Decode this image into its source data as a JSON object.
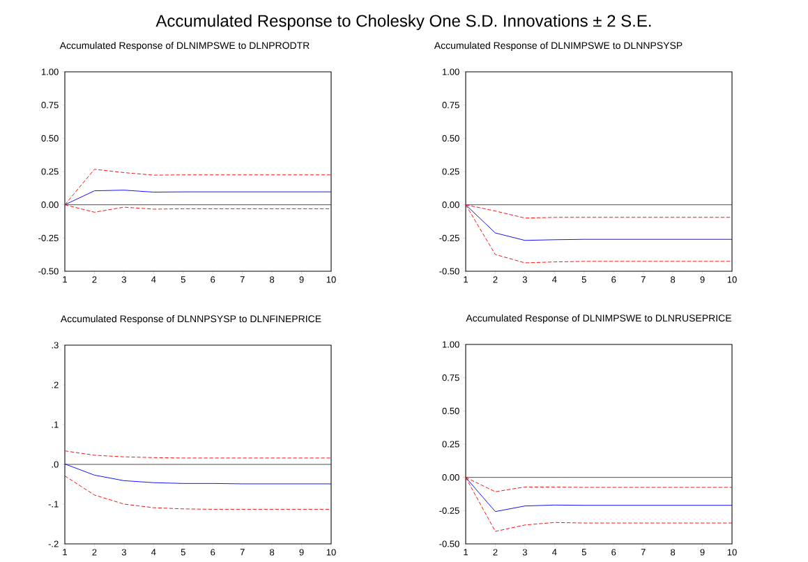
{
  "chart_data": [
    {
      "type": "other",
      "title": "Accumulated Response to Cholesky One S.D. Innovations ± 2 S.E."
    },
    {
      "type": "line",
      "title": "Accumulated Response of DLNIMPSWE to DLNPRODTR",
      "x": [
        1,
        2,
        3,
        4,
        5,
        6,
        7,
        8,
        9,
        10
      ],
      "xlim": [
        1,
        10
      ],
      "xticks": [
        1,
        2,
        3,
        4,
        5,
        6,
        7,
        8,
        9,
        10
      ],
      "ylim": [
        -0.5,
        1
      ],
      "yticks": [
        {
          "value": -0.5,
          "label": "-0.50"
        },
        {
          "value": -0.25,
          "label": "-0.25"
        },
        {
          "value": 0,
          "label": "0.00"
        },
        {
          "value": 0.25,
          "label": "0.25"
        },
        {
          "value": 0.5,
          "label": "0.50"
        },
        {
          "value": 0.75,
          "label": "0.75"
        },
        {
          "value": 1,
          "label": "1.00"
        }
      ],
      "ref_lines": [
        {
          "axis": "y",
          "value": 0,
          "color": "#404040"
        }
      ],
      "series": [
        {
          "color": "#0000ff",
          "line_style": "solid",
          "values": [
            0,
            0.105,
            0.11,
            0.095,
            0.097,
            0.097,
            0.097,
            0.097,
            0.097,
            0.097
          ]
        },
        {
          "color": "#ff0000",
          "line_style": "dashed",
          "values": [
            0,
            0.267,
            0.242,
            0.223,
            0.225,
            0.225,
            0.225,
            0.225,
            0.225,
            0.225
          ]
        },
        {
          "color": "#ff0000",
          "line_style": "dashed",
          "values": [
            0,
            -0.056,
            -0.018,
            -0.033,
            -0.03,
            -0.03,
            -0.03,
            -0.03,
            -0.03,
            -0.03
          ]
        }
      ]
    },
    {
      "type": "line",
      "title": "Accumulated Response of DLNIMPSWE to DLNNPSYSP",
      "x": [
        1,
        2,
        3,
        4,
        5,
        6,
        7,
        8,
        9,
        10
      ],
      "xlim": [
        1,
        10
      ],
      "xticks": [
        1,
        2,
        3,
        4,
        5,
        6,
        7,
        8,
        9,
        10
      ],
      "ylim": [
        -0.5,
        1
      ],
      "yticks": [
        {
          "value": -0.5,
          "label": "-0.50"
        },
        {
          "value": -0.25,
          "label": "-0.25"
        },
        {
          "value": 0,
          "label": "0.00"
        },
        {
          "value": 0.25,
          "label": "0.25"
        },
        {
          "value": 0.5,
          "label": "0.50"
        },
        {
          "value": 0.75,
          "label": "0.75"
        },
        {
          "value": 1,
          "label": "1.00"
        }
      ],
      "ref_lines": [
        {
          "axis": "y",
          "value": 0,
          "color": "#404040"
        }
      ],
      "series": [
        {
          "color": "#0000ff",
          "line_style": "solid",
          "values": [
            0,
            -0.212,
            -0.268,
            -0.263,
            -0.26,
            -0.26,
            -0.26,
            -0.26,
            -0.26,
            -0.26
          ]
        },
        {
          "color": "#ff0000",
          "line_style": "dashed",
          "values": [
            0,
            -0.047,
            -0.1,
            -0.095,
            -0.095,
            -0.095,
            -0.095,
            -0.095,
            -0.095,
            -0.095
          ]
        },
        {
          "color": "#ff0000",
          "line_style": "dashed",
          "values": [
            0,
            -0.374,
            -0.437,
            -0.43,
            -0.426,
            -0.426,
            -0.426,
            -0.426,
            -0.426,
            -0.426
          ]
        }
      ]
    },
    {
      "type": "line",
      "title": "Accumulated Response of DLNNPSYSP to DLNFINEPRICE",
      "x": [
        1,
        2,
        3,
        4,
        5,
        6,
        7,
        8,
        9,
        10
      ],
      "xlim": [
        1,
        10
      ],
      "xticks": [
        1,
        2,
        3,
        4,
        5,
        6,
        7,
        8,
        9,
        10
      ],
      "ylim": [
        -0.2,
        0.3
      ],
      "yticks": [
        {
          "value": -0.2,
          "label": "-.2"
        },
        {
          "value": -0.1,
          "label": "-.1"
        },
        {
          "value": 0,
          "label": ".0"
        },
        {
          "value": 0.1,
          "label": ".1"
        },
        {
          "value": 0.2,
          "label": ".2"
        },
        {
          "value": 0.3,
          "label": ".3"
        }
      ],
      "ref_lines": [
        {
          "axis": "y",
          "value": 0,
          "color": "#404040"
        }
      ],
      "series": [
        {
          "color": "#0000ff",
          "line_style": "solid",
          "values": [
            0.001,
            -0.027,
            -0.041,
            -0.046,
            -0.048,
            -0.048,
            -0.049,
            -0.049,
            -0.049,
            -0.049
          ]
        },
        {
          "color": "#ff0000",
          "line_style": "dashed",
          "values": [
            0.034,
            0.023,
            0.019,
            0.017,
            0.016,
            0.016,
            0.016,
            0.016,
            0.016,
            0.016
          ]
        },
        {
          "color": "#ff0000",
          "line_style": "dashed",
          "values": [
            -0.029,
            -0.077,
            -0.1,
            -0.109,
            -0.112,
            -0.113,
            -0.113,
            -0.113,
            -0.113,
            -0.113
          ]
        }
      ]
    },
    {
      "type": "line",
      "title": "Accumulated Response of DLNIMPSWE to DLNRUSEPRICE",
      "x": [
        1,
        2,
        3,
        4,
        5,
        6,
        7,
        8,
        9,
        10
      ],
      "xlim": [
        1,
        10
      ],
      "xticks": [
        1,
        2,
        3,
        4,
        5,
        6,
        7,
        8,
        9,
        10
      ],
      "ylim": [
        -0.5,
        1
      ],
      "yticks": [
        {
          "value": -0.5,
          "label": "-0.50"
        },
        {
          "value": -0.25,
          "label": "-0.25"
        },
        {
          "value": 0,
          "label": "0.00"
        },
        {
          "value": 0.25,
          "label": "0.25"
        },
        {
          "value": 0.5,
          "label": "0.50"
        },
        {
          "value": 0.75,
          "label": "0.75"
        },
        {
          "value": 1,
          "label": "1.00"
        }
      ],
      "ref_lines": [
        {
          "axis": "y",
          "value": 0,
          "color": "#404040"
        }
      ],
      "series": [
        {
          "color": "#0000ff",
          "line_style": "solid",
          "values": [
            0,
            -0.257,
            -0.215,
            -0.208,
            -0.21,
            -0.21,
            -0.21,
            -0.21,
            -0.21,
            -0.21
          ]
        },
        {
          "color": "#ff0000",
          "line_style": "dashed",
          "values": [
            0,
            -0.108,
            -0.072,
            -0.073,
            -0.075,
            -0.075,
            -0.075,
            -0.075,
            -0.075,
            -0.075
          ]
        },
        {
          "color": "#ff0000",
          "line_style": "dashed",
          "values": [
            0,
            -0.406,
            -0.358,
            -0.339,
            -0.343,
            -0.343,
            -0.343,
            -0.343,
            -0.343,
            -0.343
          ]
        }
      ]
    }
  ]
}
